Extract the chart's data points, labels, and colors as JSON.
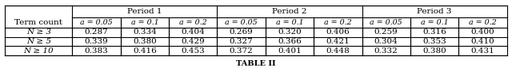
{
  "caption": "TABLE II",
  "col_groups": [
    "Period 1",
    "Period 2",
    "Period 3"
  ],
  "sub_cols": [
    "a = 0.05",
    "a = 0.1",
    "a = 0.2"
  ],
  "row_header": "Term count",
  "rows": [
    {
      "label": "N ≥ 3",
      "values": [
        0.287,
        0.334,
        0.404,
        0.269,
        0.32,
        0.406,
        0.259,
        0.316,
        0.4
      ]
    },
    {
      "label": "N ≥ 5",
      "values": [
        0.339,
        0.38,
        0.429,
        0.327,
        0.366,
        0.421,
        0.304,
        0.353,
        0.41
      ]
    },
    {
      "label": "N ≥ 10",
      "values": [
        0.383,
        0.416,
        0.453,
        0.372,
        0.401,
        0.448,
        0.332,
        0.38,
        0.431
      ]
    }
  ]
}
